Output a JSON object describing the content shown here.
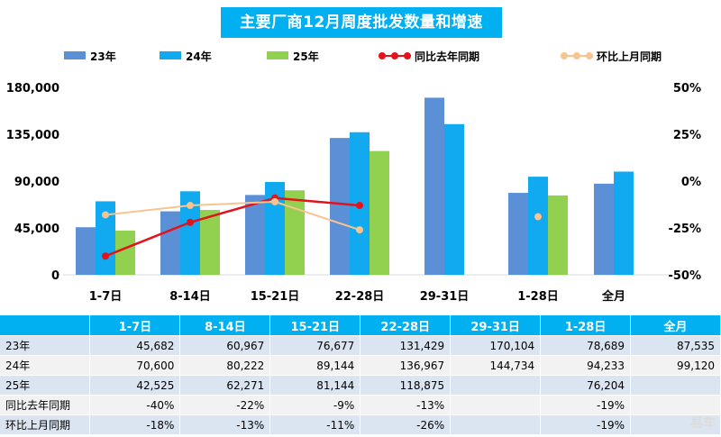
{
  "chart_data": {
    "type": "bar+line",
    "title": "主要厂商12月周度批发数量和增速",
    "categories": [
      "1-7日",
      "8-14日",
      "15-21日",
      "22-28日",
      "29-31日",
      "1-28日",
      "全月"
    ],
    "series": [
      {
        "name": "23年",
        "type": "bar",
        "color": "#5b8fd6",
        "values": [
          45682,
          60967,
          76677,
          131429,
          170104,
          78689,
          87535
        ]
      },
      {
        "name": "24年",
        "type": "bar",
        "color": "#11aaf0",
        "values": [
          70600,
          80222,
          89144,
          136967,
          144734,
          94233,
          99120
        ]
      },
      {
        "name": "25年",
        "type": "bar",
        "color": "#92d050",
        "values": [
          42525,
          62271,
          81144,
          118875,
          null,
          76204,
          null
        ]
      },
      {
        "name": "同比去年同期",
        "type": "line",
        "axis": "right",
        "color": "#e4121b",
        "values": [
          -40,
          -22,
          -9,
          -13,
          null,
          -19,
          null
        ]
      },
      {
        "name": "环比上月同期",
        "type": "line",
        "axis": "right",
        "color": "#f8c48f",
        "values": [
          -18,
          -13,
          -11,
          -26,
          null,
          -19,
          null
        ]
      }
    ],
    "y_left": {
      "min": 0,
      "max": 180000,
      "ticks": [
        "0",
        "45,000",
        "90,000",
        "135,000",
        "180,000"
      ]
    },
    "y_right": {
      "min": -50,
      "max": 50,
      "ticks": [
        "-50%",
        "-25%",
        "0%",
        "25%",
        "50%"
      ]
    },
    "legend_position": "top",
    "grid": false
  },
  "table": {
    "header": [
      "",
      "1-7日",
      "8-14日",
      "15-21日",
      "22-28日",
      "29-31日",
      "1-28日",
      "全月"
    ],
    "rows": [
      [
        "23年",
        "45,682",
        "60,967",
        "76,677",
        "131,429",
        "170,104",
        "78,689",
        "87,535"
      ],
      [
        "24年",
        "70,600",
        "80,222",
        "89,144",
        "136,967",
        "144,734",
        "94,233",
        "99,120"
      ],
      [
        "25年",
        "42,525",
        "62,271",
        "81,144",
        "118,875",
        "",
        "76,204",
        ""
      ],
      [
        "同比去年同期",
        "-40%",
        "-22%",
        "-9%",
        "-13%",
        "",
        "-19%",
        ""
      ],
      [
        "环比上月同期",
        "-18%",
        "-13%",
        "-11%",
        "-26%",
        "",
        "-19%",
        ""
      ]
    ]
  },
  "watermark": "易车"
}
